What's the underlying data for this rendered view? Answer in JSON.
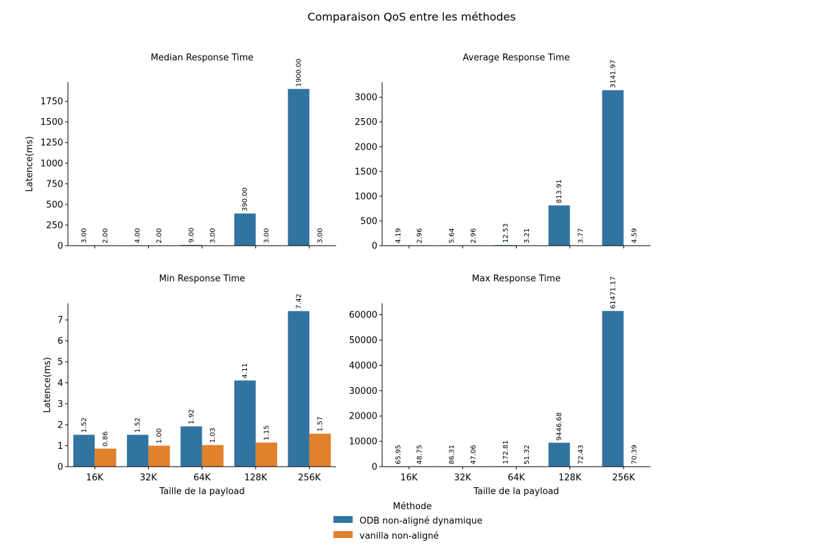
{
  "figure": {
    "title": "Comparaison QoS entre les méthodes",
    "legend": {
      "title": "Méthode",
      "placement": "bottom-center",
      "entries": [
        {
          "label": "ODB non-aligné dynamique",
          "color": "#3274a1"
        },
        {
          "label": "vanilla non-aligné",
          "color": "#e1812c"
        }
      ]
    }
  },
  "chart_data": [
    {
      "type": "bar",
      "title": "Median Response Time",
      "xlabel": "",
      "ylabel": "Latence(ms)",
      "categories": [
        "16K",
        "32K",
        "64K",
        "128K",
        "256K"
      ],
      "ylim": [
        0,
        1980
      ],
      "yticks": [
        0,
        250,
        500,
        750,
        1000,
        1250,
        1500,
        1750
      ],
      "ytick_labels": [
        "0",
        "250",
        "500",
        "750",
        "1000",
        "1250",
        "1500",
        "1750"
      ],
      "show_xtick_labels": false,
      "series": [
        {
          "name": "ODB non-aligné dynamique",
          "values": [
            3.0,
            4.0,
            9.0,
            390.0,
            1900.0
          ],
          "labels": [
            "3.00",
            "4.00",
            "9.00",
            "390.00",
            "1900.00"
          ]
        },
        {
          "name": "vanilla non-aligné",
          "values": [
            2.0,
            2.0,
            3.0,
            3.0,
            3.0
          ],
          "labels": [
            "2.00",
            "2.00",
            "3.00",
            "3.00",
            "3.00"
          ]
        }
      ]
    },
    {
      "type": "bar",
      "title": "Average Response Time",
      "xlabel": "",
      "ylabel": "",
      "categories": [
        "16K",
        "32K",
        "64K",
        "128K",
        "256K"
      ],
      "ylim": [
        0,
        3300
      ],
      "yticks": [
        0,
        500,
        1000,
        1500,
        2000,
        2500,
        3000
      ],
      "ytick_labels": [
        "0",
        "500",
        "1000",
        "1500",
        "2000",
        "2500",
        "3000"
      ],
      "show_xtick_labels": false,
      "series": [
        {
          "name": "ODB non-aligné dynamique",
          "values": [
            4.19,
            5.64,
            12.53,
            813.91,
            3141.97
          ],
          "labels": [
            "4.19",
            "5.64",
            "12.53",
            "813.91",
            "3141.97"
          ]
        },
        {
          "name": "vanilla non-aligné",
          "values": [
            2.96,
            2.96,
            3.21,
            3.77,
            4.59
          ],
          "labels": [
            "2.96",
            "2.96",
            "3.21",
            "3.77",
            "4.59"
          ]
        }
      ]
    },
    {
      "type": "bar",
      "title": "Min Response Time",
      "xlabel": "Taille de la payload",
      "ylabel": "Latence(ms)",
      "categories": [
        "16K",
        "32K",
        "64K",
        "128K",
        "256K"
      ],
      "ylim": [
        0,
        7.79
      ],
      "yticks": [
        0,
        1,
        2,
        3,
        4,
        5,
        6,
        7
      ],
      "ytick_labels": [
        "0",
        "1",
        "2",
        "3",
        "4",
        "5",
        "6",
        "7"
      ],
      "show_xtick_labels": true,
      "series": [
        {
          "name": "ODB non-aligné dynamique",
          "values": [
            1.52,
            1.52,
            1.92,
            4.11,
            7.42
          ],
          "labels": [
            "1.52",
            "1.52",
            "1.92",
            "4.11",
            "7.42"
          ]
        },
        {
          "name": "vanilla non-aligné",
          "values": [
            0.86,
            1.0,
            1.03,
            1.15,
            1.57
          ],
          "labels": [
            "0.86",
            "1.00",
            "1.03",
            "1.15",
            "1.57"
          ]
        }
      ]
    },
    {
      "type": "bar",
      "title": "Max Response Time",
      "xlabel": "Taille de la payload",
      "ylabel": "",
      "categories": [
        "16K",
        "32K",
        "64K",
        "128K",
        "256K"
      ],
      "ylim": [
        0,
        64500
      ],
      "yticks": [
        0,
        10000,
        20000,
        30000,
        40000,
        50000,
        60000
      ],
      "ytick_labels": [
        "0",
        "10000",
        "20000",
        "30000",
        "40000",
        "50000",
        "60000"
      ],
      "show_xtick_labels": true,
      "series": [
        {
          "name": "ODB non-aligné dynamique",
          "values": [
            65.95,
            86.31,
            172.81,
            9446.68,
            61471.17
          ],
          "labels": [
            "65.95",
            "86.31",
            "172.81",
            "9446.68",
            "61471.17"
          ]
        },
        {
          "name": "vanilla non-aligné",
          "values": [
            48.75,
            47.06,
            51.32,
            72.43,
            70.39
          ],
          "labels": [
            "48.75",
            "47.06",
            "51.32",
            "72.43",
            "70.39"
          ]
        }
      ]
    }
  ]
}
